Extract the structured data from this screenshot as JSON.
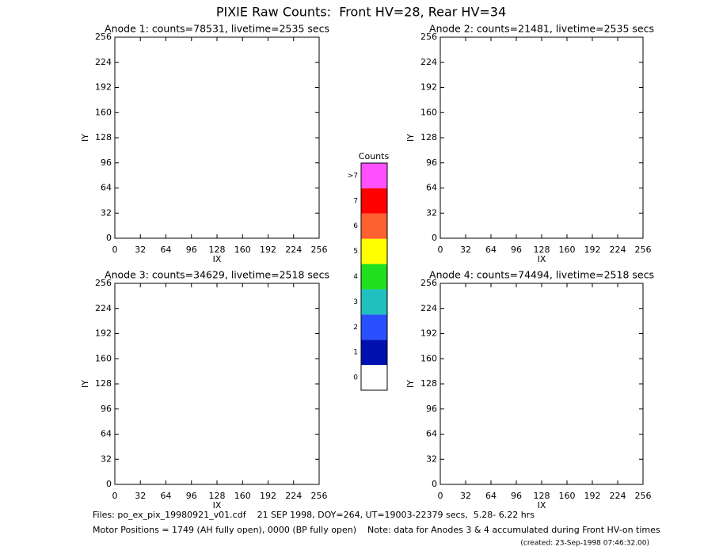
{
  "title": "PIXIE Raw Counts:  Front HV=28, Rear HV=34",
  "chart_data": [
    {
      "type": "heatmap",
      "title": "Anode 1: counts=78531, livetime=2535 secs",
      "xlabel": "IX",
      "ylabel": "IY",
      "xlim": [
        0,
        256
      ],
      "ylim": [
        0,
        256
      ],
      "xticks": [
        0,
        32,
        64,
        96,
        128,
        160,
        192,
        224,
        256
      ],
      "yticks": [
        0,
        32,
        64,
        96,
        128,
        160,
        192,
        224,
        256
      ]
    },
    {
      "type": "heatmap",
      "title": "Anode 2: counts=21481, livetime=2535 secs",
      "xlabel": "IX",
      "ylabel": "IY",
      "xlim": [
        0,
        256
      ],
      "ylim": [
        0,
        256
      ],
      "xticks": [
        0,
        32,
        64,
        96,
        128,
        160,
        192,
        224,
        256
      ],
      "yticks": [
        0,
        32,
        64,
        96,
        128,
        160,
        192,
        224,
        256
      ]
    },
    {
      "type": "heatmap",
      "title": "Anode 3: counts=34629, livetime=2518 secs",
      "xlabel": "IX",
      "ylabel": "IY",
      "xlim": [
        0,
        256
      ],
      "ylim": [
        0,
        256
      ],
      "xticks": [
        0,
        32,
        64,
        96,
        128,
        160,
        192,
        224,
        256
      ],
      "yticks": [
        0,
        32,
        64,
        96,
        128,
        160,
        192,
        224,
        256
      ]
    },
    {
      "type": "heatmap",
      "title": "Anode 4: counts=74494, livetime=2518 secs",
      "xlabel": "IX",
      "ylabel": "IY",
      "xlim": [
        0,
        256
      ],
      "ylim": [
        0,
        256
      ],
      "xticks": [
        0,
        32,
        64,
        96,
        128,
        160,
        192,
        224,
        256
      ],
      "yticks": [
        0,
        32,
        64,
        96,
        128,
        160,
        192,
        224,
        256
      ]
    }
  ],
  "colorbar": {
    "title": "Counts",
    "levels": [
      0,
      1,
      2,
      3,
      4,
      5,
      6,
      7,
      {
        "value": 8,
        "label": ">7"
      }
    ],
    "colors": [
      "#ffffff",
      "#0010b0",
      "#2850ff",
      "#20c0c0",
      "#20e020",
      "#ffff00",
      "#ff6030",
      "#ff0000",
      "#ff50ff"
    ]
  },
  "footer": {
    "files": "Files: po_ex_pix_19980921_v01.cdf    21 SEP 1998, DOY=264, UT=19003-22379 secs,  5.28- 6.22 hrs",
    "motor": "Motor Positions = 1749 (AH fully open), 0000 (BP fully open)    Note: data for Anodes 3 & 4 accumulated during Front HV-on times",
    "created": "(created: 23-Sep-1998 07:46:32.00)"
  }
}
